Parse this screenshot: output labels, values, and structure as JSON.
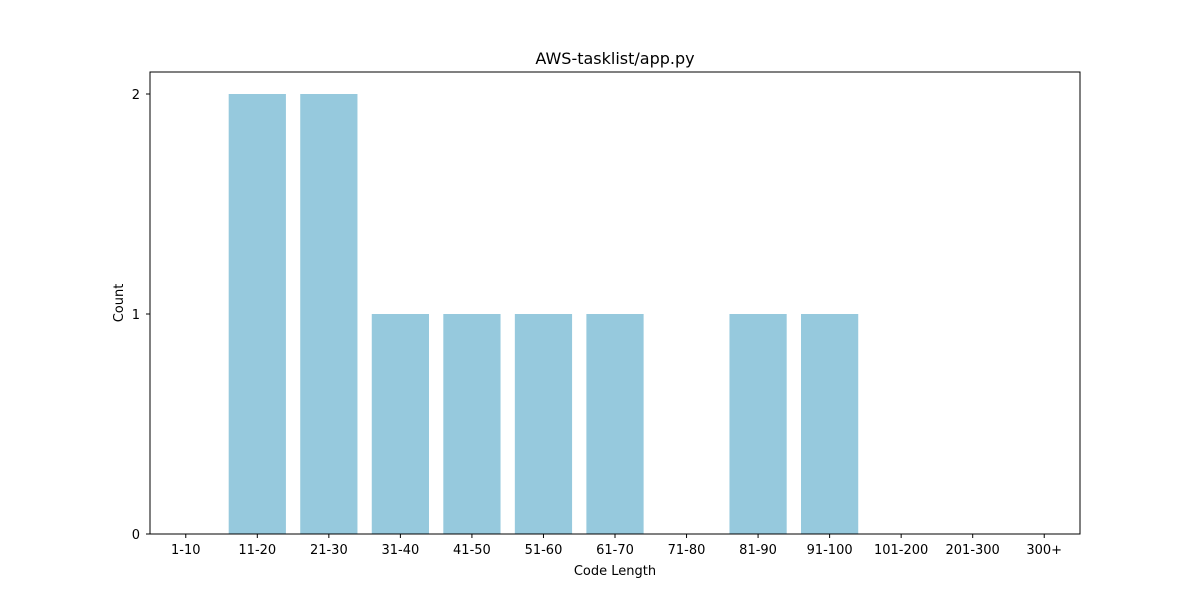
{
  "chart_data": {
    "type": "bar",
    "title": "AWS-tasklist/app.py",
    "xlabel": "Code Length",
    "ylabel": "Count",
    "categories": [
      "1-10",
      "11-20",
      "21-30",
      "31-40",
      "41-50",
      "51-60",
      "61-70",
      "71-80",
      "81-90",
      "91-100",
      "101-200",
      "201-300",
      "300+"
    ],
    "values": [
      0,
      2,
      2,
      1,
      1,
      1,
      1,
      0,
      1,
      1,
      0,
      0,
      0
    ],
    "ylim": [
      0,
      2.1
    ],
    "yticks": [
      "0",
      "1",
      "2"
    ],
    "bar_color": "#96c9dd",
    "grid": false,
    "legend": "none"
  }
}
